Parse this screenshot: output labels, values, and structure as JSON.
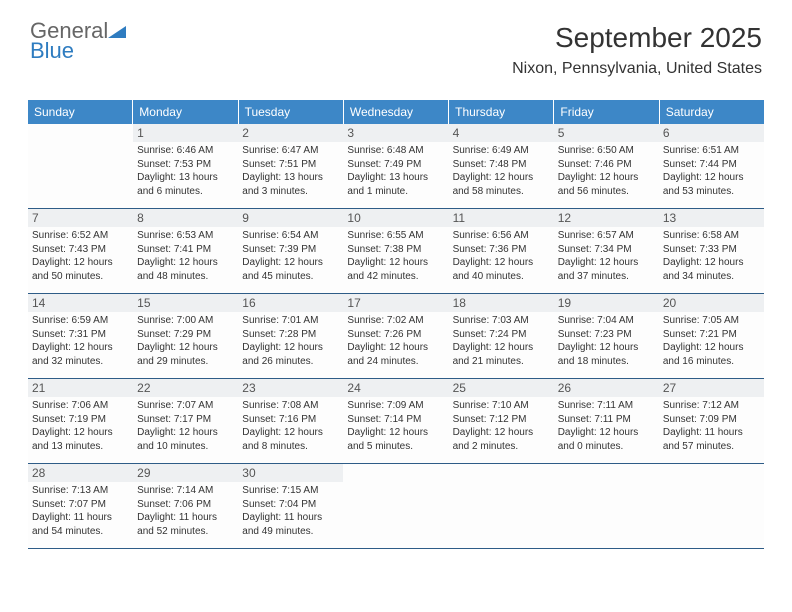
{
  "brand": {
    "word1": "General",
    "word2": "Blue"
  },
  "title": "September 2025",
  "location": "Nixon, Pennsylvania, United States",
  "colors": {
    "header_bg": "#3d87c7",
    "rule": "#2e5c87",
    "shade": "#eef0f2"
  },
  "day_headers": [
    "Sunday",
    "Monday",
    "Tuesday",
    "Wednesday",
    "Thursday",
    "Friday",
    "Saturday"
  ],
  "weeks": [
    [
      {
        "empty": true
      },
      {
        "n": "1",
        "sr": "Sunrise: 6:46 AM",
        "ss": "Sunset: 7:53 PM",
        "dl1": "Daylight: 13 hours",
        "dl2": "and 6 minutes."
      },
      {
        "n": "2",
        "sr": "Sunrise: 6:47 AM",
        "ss": "Sunset: 7:51 PM",
        "dl1": "Daylight: 13 hours",
        "dl2": "and 3 minutes."
      },
      {
        "n": "3",
        "sr": "Sunrise: 6:48 AM",
        "ss": "Sunset: 7:49 PM",
        "dl1": "Daylight: 13 hours",
        "dl2": "and 1 minute."
      },
      {
        "n": "4",
        "sr": "Sunrise: 6:49 AM",
        "ss": "Sunset: 7:48 PM",
        "dl1": "Daylight: 12 hours",
        "dl2": "and 58 minutes."
      },
      {
        "n": "5",
        "sr": "Sunrise: 6:50 AM",
        "ss": "Sunset: 7:46 PM",
        "dl1": "Daylight: 12 hours",
        "dl2": "and 56 minutes."
      },
      {
        "n": "6",
        "sr": "Sunrise: 6:51 AM",
        "ss": "Sunset: 7:44 PM",
        "dl1": "Daylight: 12 hours",
        "dl2": "and 53 minutes."
      }
    ],
    [
      {
        "n": "7",
        "sr": "Sunrise: 6:52 AM",
        "ss": "Sunset: 7:43 PM",
        "dl1": "Daylight: 12 hours",
        "dl2": "and 50 minutes."
      },
      {
        "n": "8",
        "sr": "Sunrise: 6:53 AM",
        "ss": "Sunset: 7:41 PM",
        "dl1": "Daylight: 12 hours",
        "dl2": "and 48 minutes."
      },
      {
        "n": "9",
        "sr": "Sunrise: 6:54 AM",
        "ss": "Sunset: 7:39 PM",
        "dl1": "Daylight: 12 hours",
        "dl2": "and 45 minutes."
      },
      {
        "n": "10",
        "sr": "Sunrise: 6:55 AM",
        "ss": "Sunset: 7:38 PM",
        "dl1": "Daylight: 12 hours",
        "dl2": "and 42 minutes."
      },
      {
        "n": "11",
        "sr": "Sunrise: 6:56 AM",
        "ss": "Sunset: 7:36 PM",
        "dl1": "Daylight: 12 hours",
        "dl2": "and 40 minutes."
      },
      {
        "n": "12",
        "sr": "Sunrise: 6:57 AM",
        "ss": "Sunset: 7:34 PM",
        "dl1": "Daylight: 12 hours",
        "dl2": "and 37 minutes."
      },
      {
        "n": "13",
        "sr": "Sunrise: 6:58 AM",
        "ss": "Sunset: 7:33 PM",
        "dl1": "Daylight: 12 hours",
        "dl2": "and 34 minutes."
      }
    ],
    [
      {
        "n": "14",
        "sr": "Sunrise: 6:59 AM",
        "ss": "Sunset: 7:31 PM",
        "dl1": "Daylight: 12 hours",
        "dl2": "and 32 minutes."
      },
      {
        "n": "15",
        "sr": "Sunrise: 7:00 AM",
        "ss": "Sunset: 7:29 PM",
        "dl1": "Daylight: 12 hours",
        "dl2": "and 29 minutes."
      },
      {
        "n": "16",
        "sr": "Sunrise: 7:01 AM",
        "ss": "Sunset: 7:28 PM",
        "dl1": "Daylight: 12 hours",
        "dl2": "and 26 minutes."
      },
      {
        "n": "17",
        "sr": "Sunrise: 7:02 AM",
        "ss": "Sunset: 7:26 PM",
        "dl1": "Daylight: 12 hours",
        "dl2": "and 24 minutes."
      },
      {
        "n": "18",
        "sr": "Sunrise: 7:03 AM",
        "ss": "Sunset: 7:24 PM",
        "dl1": "Daylight: 12 hours",
        "dl2": "and 21 minutes."
      },
      {
        "n": "19",
        "sr": "Sunrise: 7:04 AM",
        "ss": "Sunset: 7:23 PM",
        "dl1": "Daylight: 12 hours",
        "dl2": "and 18 minutes."
      },
      {
        "n": "20",
        "sr": "Sunrise: 7:05 AM",
        "ss": "Sunset: 7:21 PM",
        "dl1": "Daylight: 12 hours",
        "dl2": "and 16 minutes."
      }
    ],
    [
      {
        "n": "21",
        "sr": "Sunrise: 7:06 AM",
        "ss": "Sunset: 7:19 PM",
        "dl1": "Daylight: 12 hours",
        "dl2": "and 13 minutes."
      },
      {
        "n": "22",
        "sr": "Sunrise: 7:07 AM",
        "ss": "Sunset: 7:17 PM",
        "dl1": "Daylight: 12 hours",
        "dl2": "and 10 minutes."
      },
      {
        "n": "23",
        "sr": "Sunrise: 7:08 AM",
        "ss": "Sunset: 7:16 PM",
        "dl1": "Daylight: 12 hours",
        "dl2": "and 8 minutes."
      },
      {
        "n": "24",
        "sr": "Sunrise: 7:09 AM",
        "ss": "Sunset: 7:14 PM",
        "dl1": "Daylight: 12 hours",
        "dl2": "and 5 minutes."
      },
      {
        "n": "25",
        "sr": "Sunrise: 7:10 AM",
        "ss": "Sunset: 7:12 PM",
        "dl1": "Daylight: 12 hours",
        "dl2": "and 2 minutes."
      },
      {
        "n": "26",
        "sr": "Sunrise: 7:11 AM",
        "ss": "Sunset: 7:11 PM",
        "dl1": "Daylight: 12 hours",
        "dl2": "and 0 minutes."
      },
      {
        "n": "27",
        "sr": "Sunrise: 7:12 AM",
        "ss": "Sunset: 7:09 PM",
        "dl1": "Daylight: 11 hours",
        "dl2": "and 57 minutes."
      }
    ],
    [
      {
        "n": "28",
        "sr": "Sunrise: 7:13 AM",
        "ss": "Sunset: 7:07 PM",
        "dl1": "Daylight: 11 hours",
        "dl2": "and 54 minutes."
      },
      {
        "n": "29",
        "sr": "Sunrise: 7:14 AM",
        "ss": "Sunset: 7:06 PM",
        "dl1": "Daylight: 11 hours",
        "dl2": "and 52 minutes."
      },
      {
        "n": "30",
        "sr": "Sunrise: 7:15 AM",
        "ss": "Sunset: 7:04 PM",
        "dl1": "Daylight: 11 hours",
        "dl2": "and 49 minutes."
      },
      {
        "empty": true
      },
      {
        "empty": true
      },
      {
        "empty": true
      },
      {
        "empty": true
      }
    ]
  ]
}
